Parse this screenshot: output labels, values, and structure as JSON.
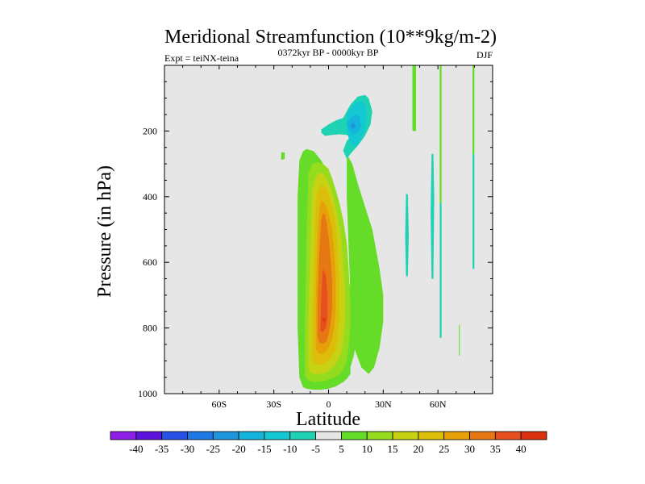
{
  "chart_data": {
    "type": "heatmap",
    "title": "Meridional Streamfunction (10**9kg/m-2)",
    "left_label": "Expt = teiNX-teina",
    "center_label": "0372kyr BP - 0000kyr BP",
    "right_label": "DJF",
    "xlabel": "Latitude",
    "ylabel": "Pressure (in hPa)",
    "xlim": [
      -90,
      90
    ],
    "ylim": [
      1000,
      0
    ],
    "x_ticks": [
      {
        "value": -60,
        "label": "60S"
      },
      {
        "value": -30,
        "label": "30S"
      },
      {
        "value": 0,
        "label": "0"
      },
      {
        "value": 30,
        "label": "30N"
      },
      {
        "value": 60,
        "label": "60N"
      }
    ],
    "y_ticks": [
      {
        "value": 200,
        "label": "200"
      },
      {
        "value": 400,
        "label": "400"
      },
      {
        "value": 600,
        "label": "600"
      },
      {
        "value": 800,
        "label": "800"
      },
      {
        "value": 1000,
        "label": "1000"
      }
    ],
    "background_color": "#e6e6e6",
    "colorbar": {
      "levels": [
        "-40",
        "-35",
        "-30",
        "-25",
        "-20",
        "-15",
        "-10",
        "-5",
        "5",
        "10",
        "15",
        "20",
        "25",
        "30",
        "35",
        "40"
      ],
      "colors": [
        "#8c1ee6",
        "#5a14dc",
        "#2850e6",
        "#1e78e6",
        "#1e96dc",
        "#14b4dc",
        "#14c8d2",
        "#1ed2b4",
        "#e6e6e6",
        "#64dc28",
        "#96dc1e",
        "#c8d214",
        "#dcbe0a",
        "#e6a00a",
        "#e67814",
        "#e6501e",
        "#dc320f"
      ]
    },
    "regions": [
      {
        "name": "mean-cell-band-5",
        "lon": [
          -16,
          -14,
          -12,
          -8,
          -4,
          0,
          4,
          8,
          10,
          12,
          12,
          14,
          16,
          14,
          12,
          10,
          8,
          6,
          4,
          2,
          0,
          -4,
          -8,
          -12,
          -14,
          -16,
          -17,
          -17
        ],
        "p": [
          950,
          980,
          985,
          988,
          988,
          985,
          978,
          965,
          955,
          940,
          920,
          880,
          800,
          740,
          680,
          620,
          560,
          500,
          440,
          380,
          330,
          290,
          262,
          255,
          262,
          290,
          400,
          800
        ],
        "level": 5
      },
      {
        "name": "ne-tongue-band-5",
        "lon": [
          10,
          13,
          16,
          20,
          24,
          26,
          28,
          30,
          30,
          28,
          25,
          22,
          18,
          14,
          12,
          10
        ],
        "p": [
          270,
          300,
          360,
          430,
          500,
          560,
          620,
          700,
          780,
          860,
          920,
          940,
          920,
          860,
          700,
          400
        ],
        "level": 5
      },
      {
        "name": "mean-cell-band-10",
        "lon": [
          -13,
          -12,
          -10,
          -7,
          -3,
          0,
          3,
          6,
          8,
          10,
          11,
          12,
          12,
          11,
          10,
          8,
          6,
          4,
          2,
          0,
          -3,
          -6,
          -9,
          -11,
          -12,
          -13
        ],
        "p": [
          940,
          955,
          962,
          965,
          963,
          958,
          950,
          940,
          925,
          900,
          860,
          800,
          720,
          620,
          540,
          470,
          420,
          380,
          345,
          315,
          300,
          295,
          300,
          330,
          500,
          800
        ],
        "level": 10
      },
      {
        "name": "mean-cell-band-15",
        "lon": [
          -11,
          -10,
          -8,
          -5,
          -2,
          0,
          3,
          5,
          7,
          8,
          9,
          9,
          8,
          7,
          5,
          3,
          1,
          -1,
          -3,
          -5,
          -7,
          -9,
          -10,
          -11
        ],
        "p": [
          920,
          935,
          940,
          940,
          937,
          930,
          915,
          900,
          875,
          840,
          780,
          680,
          600,
          520,
          460,
          410,
          370,
          345,
          330,
          328,
          340,
          380,
          550,
          800
        ],
        "level": 15
      },
      {
        "name": "mean-cell-band-20",
        "lon": [
          -9,
          -8,
          -6,
          -3,
          0,
          2,
          4,
          5,
          6,
          6,
          5,
          4,
          2,
          0,
          -2,
          -4,
          -6,
          -7,
          -8,
          -9
        ],
        "p": [
          890,
          905,
          912,
          910,
          900,
          885,
          860,
          820,
          760,
          660,
          560,
          490,
          430,
          395,
          370,
          365,
          380,
          420,
          600,
          800
        ],
        "level": 20
      },
      {
        "name": "mean-cell-band-25",
        "lon": [
          -7,
          -6,
          -4,
          -2,
          0,
          2,
          3,
          4,
          4,
          3,
          2,
          0,
          -2,
          -4,
          -5,
          -6,
          -7
        ],
        "p": [
          860,
          875,
          880,
          875,
          860,
          835,
          800,
          740,
          640,
          560,
          500,
          450,
          420,
          410,
          440,
          520,
          700
        ],
        "level": 25
      },
      {
        "name": "mean-cell-band-30",
        "lon": [
          -6,
          -5,
          -3,
          -1,
          0,
          1,
          2,
          2,
          1,
          0,
          -1,
          -2,
          -3,
          -4,
          -5,
          -6
        ],
        "p": [
          830,
          845,
          848,
          840,
          820,
          790,
          740,
          660,
          580,
          520,
          480,
          455,
          450,
          470,
          560,
          720
        ],
        "level": 30
      },
      {
        "name": "mean-cell-band-35",
        "lon": [
          -4.5,
          -3,
          -1.5,
          -0.5,
          -0.5,
          -1.5,
          -3,
          -4
        ],
        "p": [
          810,
          812,
          800,
          770,
          700,
          640,
          620,
          700
        ],
        "level": 35
      },
      {
        "name": "mean-cell-band-40",
        "lon": [
          -3.2,
          -1.8,
          -1.8,
          -3.2
        ],
        "p": [
          770,
          770,
          780,
          780
        ],
        "level": 40
      },
      {
        "name": "upper-cell-band-m5",
        "lon": [
          -4,
          0,
          4,
          8,
          12,
          16,
          20,
          22,
          24,
          23,
          20,
          16,
          12,
          10,
          8,
          10,
          12,
          10,
          6,
          2,
          -2,
          -4
        ],
        "p": [
          195,
          180,
          168,
          160,
          120,
          95,
          90,
          100,
          140,
          180,
          215,
          245,
          270,
          285,
          260,
          230,
          218,
          212,
          210,
          212,
          215,
          205
        ],
        "level": -5
      },
      {
        "name": "upper-cell-band-m10",
        "lon": [
          10,
          12,
          15,
          18,
          20,
          21,
          20,
          18,
          15,
          12,
          10
        ],
        "p": [
          150,
          130,
          112,
          108,
          118,
          150,
          195,
          225,
          245,
          240,
          200
        ],
        "level": -10
      },
      {
        "name": "upper-cell-band-m15",
        "lon": [
          10,
          12,
          15,
          17,
          18,
          16,
          13,
          11
        ],
        "p": [
          175,
          160,
          150,
          155,
          185,
          205,
          210,
          195
        ],
        "level": -15
      },
      {
        "name": "upper-cell-band-m20",
        "lon": [
          12,
          14,
          15,
          13
        ],
        "p": [
          180,
          175,
          188,
          195
        ],
        "level": -20
      },
      {
        "name": "small-sh-patch",
        "lon": [
          -26,
          -24,
          -24,
          -26
        ],
        "p": [
          265,
          265,
          285,
          288
        ],
        "level": 5
      },
      {
        "name": "nh-streak-45n",
        "lon": [
          46,
          48,
          48,
          46
        ],
        "p": [
          0,
          0,
          200,
          200
        ],
        "level": 5
      },
      {
        "name": "nh-streak-52n-upper",
        "lon": [
          61,
          62,
          62,
          61
        ],
        "p": [
          0,
          0,
          420,
          420
        ],
        "level": 5
      },
      {
        "name": "nh-streak-52n-lower",
        "lon": [
          61,
          62,
          62,
          61
        ],
        "p": [
          420,
          420,
          830,
          830
        ],
        "level": -5
      },
      {
        "name": "nh-streak-70n-upper",
        "lon": [
          79,
          80,
          80,
          79
        ],
        "p": [
          0,
          0,
          270,
          270
        ],
        "level": 5
      },
      {
        "name": "nh-streak-70n-lower",
        "lon": [
          79,
          80,
          80,
          79
        ],
        "p": [
          270,
          270,
          620,
          620
        ],
        "level": -5
      },
      {
        "name": "lens-43n",
        "lon": [
          42.5,
          43.5,
          44,
          43.5,
          42.5,
          42
        ],
        "p": [
          390,
          395,
          520,
          640,
          645,
          520
        ],
        "level": -5
      },
      {
        "name": "lens-57n",
        "lon": [
          56.5,
          57.5,
          58,
          57.5,
          56.5,
          56
        ],
        "p": [
          270,
          270,
          400,
          650,
          650,
          450
        ],
        "level": -5
      },
      {
        "name": "stub-71n",
        "lon": [
          71.5,
          72,
          72,
          71.5
        ],
        "p": [
          790,
          790,
          885,
          885
        ],
        "level": 5
      }
    ]
  }
}
